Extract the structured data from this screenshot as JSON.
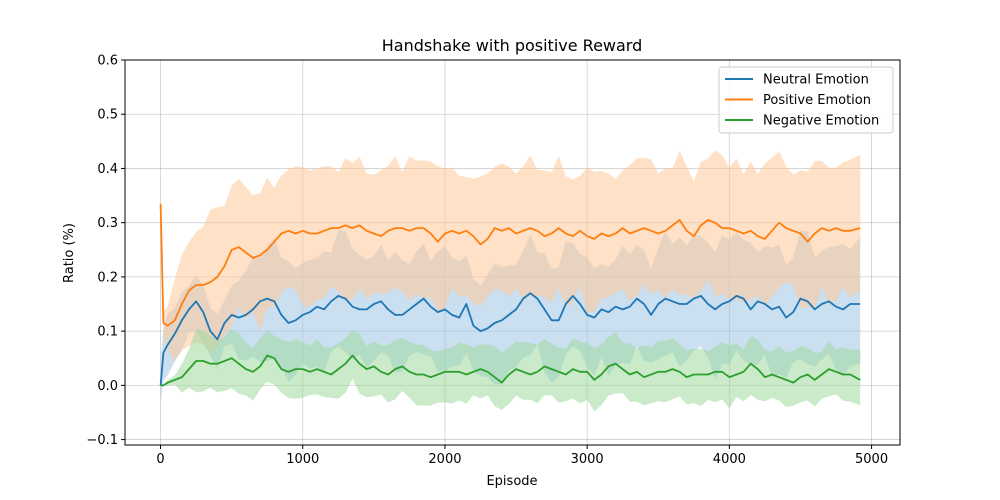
{
  "chart_data": {
    "type": "line",
    "title": "Handshake with positive Reward",
    "xlabel": "Episode",
    "ylabel": "Ratio (%)",
    "xlim": [
      -250,
      5200
    ],
    "ylim": [
      -0.11,
      0.6
    ],
    "xticks": [
      0,
      1000,
      2000,
      3000,
      4000,
      5000
    ],
    "yticks": [
      -0.1,
      0.0,
      0.1,
      0.2,
      0.3,
      0.4,
      0.5,
      0.6
    ],
    "xtick_labels": [
      "0",
      "1000",
      "2000",
      "3000",
      "4000",
      "5000"
    ],
    "ytick_labels": [
      "−0.1",
      "0.0",
      "0.1",
      "0.2",
      "0.3",
      "0.4",
      "0.5",
      "0.6"
    ],
    "grid": true,
    "legend_position": "top-right",
    "x": [
      0,
      20,
      50,
      100,
      150,
      200,
      250,
      300,
      350,
      400,
      450,
      500,
      550,
      600,
      650,
      700,
      750,
      800,
      850,
      900,
      950,
      1000,
      1050,
      1100,
      1150,
      1200,
      1250,
      1300,
      1350,
      1400,
      1450,
      1500,
      1550,
      1600,
      1650,
      1700,
      1750,
      1800,
      1850,
      1900,
      1950,
      2000,
      2050,
      2100,
      2150,
      2200,
      2250,
      2300,
      2350,
      2400,
      2450,
      2500,
      2550,
      2600,
      2650,
      2700,
      2750,
      2800,
      2850,
      2900,
      2950,
      3000,
      3050,
      3100,
      3150,
      3200,
      3250,
      3300,
      3350,
      3400,
      3450,
      3500,
      3550,
      3600,
      3650,
      3700,
      3750,
      3800,
      3850,
      3900,
      3950,
      4000,
      4050,
      4100,
      4150,
      4200,
      4250,
      4300,
      4350,
      4400,
      4450,
      4500,
      4550,
      4600,
      4650,
      4700,
      4750,
      4800,
      4850,
      4920
    ],
    "series": [
      {
        "name": "Neutral Emotion",
        "color": "#1f77b4",
        "band_color": "#9fc4e4",
        "values": [
          0.0,
          0.06,
          0.075,
          0.095,
          0.12,
          0.14,
          0.155,
          0.135,
          0.1,
          0.085,
          0.115,
          0.13,
          0.125,
          0.13,
          0.14,
          0.155,
          0.16,
          0.155,
          0.13,
          0.115,
          0.12,
          0.13,
          0.135,
          0.145,
          0.14,
          0.155,
          0.165,
          0.16,
          0.145,
          0.14,
          0.14,
          0.15,
          0.155,
          0.14,
          0.13,
          0.13,
          0.14,
          0.15,
          0.16,
          0.145,
          0.135,
          0.14,
          0.13,
          0.125,
          0.15,
          0.11,
          0.1,
          0.105,
          0.115,
          0.12,
          0.13,
          0.14,
          0.16,
          0.17,
          0.16,
          0.14,
          0.12,
          0.12,
          0.15,
          0.165,
          0.15,
          0.13,
          0.125,
          0.14,
          0.135,
          0.145,
          0.14,
          0.145,
          0.16,
          0.15,
          0.13,
          0.15,
          0.16,
          0.155,
          0.15,
          0.15,
          0.16,
          0.165,
          0.15,
          0.14,
          0.15,
          0.155,
          0.165,
          0.16,
          0.14,
          0.155,
          0.15,
          0.14,
          0.145,
          0.125,
          0.135,
          0.16,
          0.155,
          0.14,
          0.15,
          0.155,
          0.145,
          0.14,
          0.15,
          0.15
        ],
        "band_half_width": [
          0.04,
          0.05,
          0.05,
          0.05,
          0.05,
          0.05,
          0.05,
          0.05,
          0.05,
          0.05,
          0.05,
          0.06,
          0.07,
          0.08,
          0.09,
          0.1,
          0.1,
          0.1,
          0.1,
          0.1,
          0.1,
          0.1,
          0.1,
          0.1,
          0.1,
          0.1,
          0.11,
          0.11,
          0.1,
          0.1,
          0.1,
          0.1,
          0.1,
          0.1,
          0.1,
          0.1,
          0.1,
          0.1,
          0.1,
          0.1,
          0.1,
          0.1,
          0.1,
          0.1,
          0.1,
          0.1,
          0.1,
          0.1,
          0.1,
          0.1,
          0.1,
          0.1,
          0.1,
          0.1,
          0.1,
          0.1,
          0.1,
          0.1,
          0.1,
          0.1,
          0.1,
          0.1,
          0.1,
          0.1,
          0.1,
          0.1,
          0.1,
          0.1,
          0.1,
          0.1,
          0.1,
          0.1,
          0.11,
          0.11,
          0.11,
          0.11,
          0.11,
          0.11,
          0.11,
          0.11,
          0.11,
          0.11,
          0.11,
          0.11,
          0.11,
          0.11,
          0.11,
          0.11,
          0.11,
          0.11,
          0.11,
          0.11,
          0.11,
          0.11,
          0.11,
          0.11,
          0.11,
          0.11,
          0.11,
          0.11
        ]
      },
      {
        "name": "Positive Emotion",
        "color": "#ff7f0e",
        "band_color": "#ffc999",
        "values": [
          0.335,
          0.115,
          0.11,
          0.12,
          0.15,
          0.175,
          0.185,
          0.185,
          0.19,
          0.2,
          0.22,
          0.25,
          0.255,
          0.245,
          0.235,
          0.24,
          0.25,
          0.265,
          0.28,
          0.285,
          0.28,
          0.285,
          0.28,
          0.28,
          0.285,
          0.29,
          0.29,
          0.295,
          0.29,
          0.295,
          0.285,
          0.28,
          0.275,
          0.285,
          0.29,
          0.29,
          0.285,
          0.29,
          0.29,
          0.28,
          0.265,
          0.28,
          0.285,
          0.28,
          0.285,
          0.275,
          0.26,
          0.27,
          0.29,
          0.285,
          0.29,
          0.28,
          0.285,
          0.29,
          0.285,
          0.275,
          0.28,
          0.29,
          0.28,
          0.275,
          0.285,
          0.275,
          0.27,
          0.28,
          0.275,
          0.28,
          0.29,
          0.28,
          0.285,
          0.29,
          0.285,
          0.28,
          0.285,
          0.295,
          0.305,
          0.285,
          0.275,
          0.295,
          0.305,
          0.3,
          0.29,
          0.29,
          0.285,
          0.28,
          0.285,
          0.275,
          0.27,
          0.285,
          0.3,
          0.29,
          0.285,
          0.28,
          0.265,
          0.28,
          0.29,
          0.285,
          0.29,
          0.285,
          0.285,
          0.29
        ],
        "band_half_width": [
          0.02,
          0.02,
          0.04,
          0.07,
          0.09,
          0.1,
          0.11,
          0.12,
          0.12,
          0.12,
          0.13,
          0.12,
          0.12,
          0.12,
          0.12,
          0.12,
          0.12,
          0.12,
          0.12,
          0.12,
          0.12,
          0.12,
          0.12,
          0.12,
          0.12,
          0.12,
          0.12,
          0.12,
          0.12,
          0.12,
          0.12,
          0.12,
          0.12,
          0.12,
          0.12,
          0.12,
          0.12,
          0.12,
          0.12,
          0.12,
          0.12,
          0.12,
          0.12,
          0.12,
          0.12,
          0.12,
          0.12,
          0.12,
          0.12,
          0.12,
          0.12,
          0.12,
          0.12,
          0.12,
          0.12,
          0.12,
          0.12,
          0.12,
          0.12,
          0.12,
          0.12,
          0.12,
          0.12,
          0.12,
          0.12,
          0.12,
          0.12,
          0.12,
          0.12,
          0.12,
          0.12,
          0.12,
          0.12,
          0.12,
          0.12,
          0.12,
          0.12,
          0.12,
          0.12,
          0.12,
          0.12,
          0.12,
          0.12,
          0.12,
          0.12,
          0.12,
          0.12,
          0.12,
          0.12,
          0.12,
          0.12,
          0.12,
          0.12,
          0.12,
          0.12,
          0.12,
          0.12,
          0.12,
          0.12,
          0.12
        ]
      },
      {
        "name": "Negative Emotion",
        "color": "#2ca02c",
        "band_color": "#9fd89f",
        "values": [
          0.0,
          0.0,
          0.005,
          0.01,
          0.015,
          0.03,
          0.045,
          0.045,
          0.04,
          0.04,
          0.045,
          0.05,
          0.04,
          0.03,
          0.025,
          0.035,
          0.055,
          0.05,
          0.03,
          0.025,
          0.03,
          0.03,
          0.025,
          0.03,
          0.025,
          0.02,
          0.03,
          0.04,
          0.055,
          0.04,
          0.03,
          0.035,
          0.025,
          0.02,
          0.03,
          0.035,
          0.025,
          0.02,
          0.02,
          0.015,
          0.02,
          0.025,
          0.025,
          0.025,
          0.02,
          0.025,
          0.03,
          0.025,
          0.015,
          0.005,
          0.02,
          0.03,
          0.025,
          0.02,
          0.025,
          0.035,
          0.03,
          0.025,
          0.02,
          0.03,
          0.025,
          0.025,
          0.01,
          0.02,
          0.035,
          0.04,
          0.03,
          0.02,
          0.025,
          0.015,
          0.02,
          0.025,
          0.025,
          0.03,
          0.025,
          0.015,
          0.02,
          0.02,
          0.02,
          0.025,
          0.025,
          0.015,
          0.02,
          0.025,
          0.04,
          0.03,
          0.015,
          0.02,
          0.015,
          0.01,
          0.005,
          0.015,
          0.02,
          0.01,
          0.02,
          0.03,
          0.025,
          0.02,
          0.02,
          0.01
        ],
        "band_half_width": [
          0.0,
          0.0,
          0.005,
          0.01,
          0.025,
          0.04,
          0.05,
          0.05,
          0.05,
          0.05,
          0.05,
          0.05,
          0.05,
          0.05,
          0.05,
          0.05,
          0.05,
          0.05,
          0.05,
          0.05,
          0.05,
          0.05,
          0.05,
          0.05,
          0.05,
          0.05,
          0.05,
          0.05,
          0.05,
          0.05,
          0.05,
          0.05,
          0.05,
          0.05,
          0.05,
          0.05,
          0.05,
          0.05,
          0.05,
          0.05,
          0.05,
          0.05,
          0.05,
          0.05,
          0.05,
          0.05,
          0.05,
          0.05,
          0.05,
          0.05,
          0.05,
          0.05,
          0.05,
          0.05,
          0.05,
          0.05,
          0.05,
          0.05,
          0.05,
          0.05,
          0.05,
          0.05,
          0.05,
          0.05,
          0.05,
          0.05,
          0.05,
          0.05,
          0.05,
          0.05,
          0.05,
          0.05,
          0.05,
          0.05,
          0.05,
          0.05,
          0.05,
          0.05,
          0.05,
          0.05,
          0.05,
          0.05,
          0.05,
          0.05,
          0.05,
          0.05,
          0.05,
          0.05,
          0.05,
          0.05,
          0.05,
          0.05,
          0.05,
          0.05,
          0.05,
          0.05,
          0.05,
          0.05,
          0.05,
          0.05
        ]
      }
    ]
  }
}
